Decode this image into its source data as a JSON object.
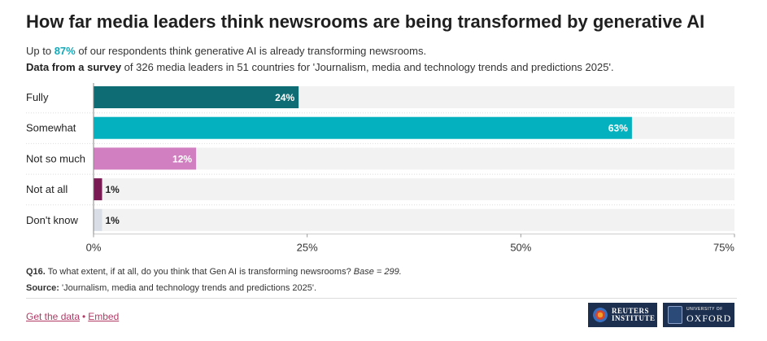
{
  "title": "How far media leaders think newsrooms are being transformed by generative AI",
  "subtitle": {
    "pre": "Up to ",
    "highlight": "87%",
    "post": " of our respondents think generative AI is already transforming newsrooms."
  },
  "data_note": {
    "bold": "Data from a survey",
    "rest": " of 326 media leaders in 51 countries for 'Journalism, media and technology trends and predictions 2025'."
  },
  "chart_data": {
    "type": "bar",
    "orientation": "horizontal",
    "categories": [
      "Fully",
      "Somewhat",
      "Not so much",
      "Not at all",
      "Don't know"
    ],
    "values": [
      24,
      63,
      12,
      1,
      1
    ],
    "value_labels": [
      "24%",
      "63%",
      "12%",
      "1%",
      "1%"
    ],
    "colors": [
      "#0e6d74",
      "#04b2bf",
      "#d17fc0",
      "#7a1a54",
      "#d8dde6"
    ],
    "track_color": "#f2f2f2",
    "xlim": [
      0,
      75
    ],
    "xticks": [
      0,
      25,
      50,
      75
    ],
    "xtick_labels": [
      "0%",
      "25%",
      "50%",
      "75%"
    ],
    "grid": false
  },
  "footer": {
    "question_bold": "Q16.",
    "question_text": " To what extent, if at all, do you think that Gen AI is transforming newsrooms? ",
    "question_base": "Base = 299.",
    "source_bold": "Source:",
    "source_text": " 'Journalism, media and technology trends and predictions 2025'."
  },
  "links": {
    "get_data": "Get the data",
    "separator": "•",
    "embed": "Embed"
  },
  "logos": {
    "reuters": [
      "REUTERS",
      "INSTITUTE"
    ],
    "oxford_small": "UNIVERSITY OF",
    "oxford_big": "OXFORD"
  }
}
